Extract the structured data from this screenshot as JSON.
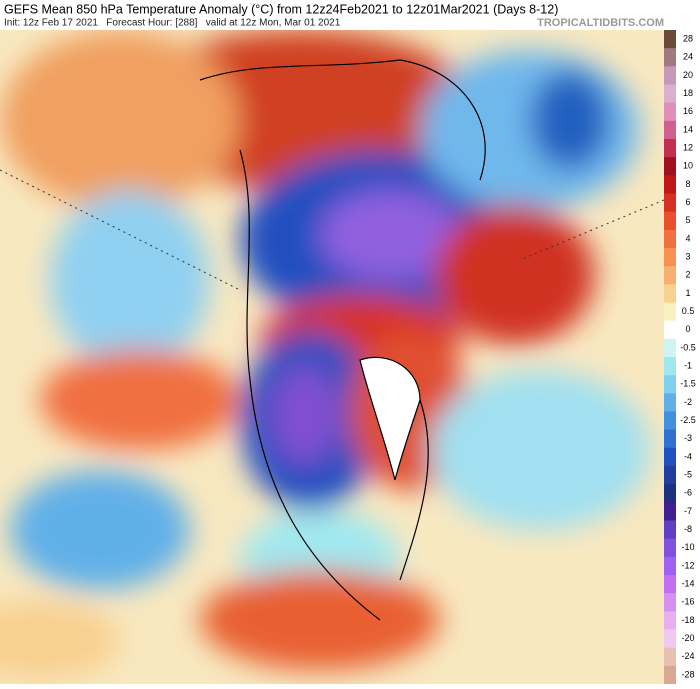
{
  "header": {
    "title": "GEFS Mean 850 hPa Temperature Anomaly (°C) from 12z24Feb2021 to 12z01Mar2021 (Days 8-12)",
    "info": "Init: 12z Feb 17 2021   Forecast Hour: [288]   valid at 12z Mon, Mar 01 2021",
    "brand": "TROPICALTIDBITS.COM"
  },
  "colorbar": {
    "labels": [
      28,
      24,
      20,
      18,
      16,
      14,
      12,
      10,
      8,
      6,
      5,
      4,
      3,
      2,
      1,
      0.5,
      0,
      -0.5,
      -1,
      -1.5,
      -2,
      -2.5,
      -3,
      -4,
      -5,
      -6,
      -7,
      -8,
      -10,
      -12,
      -14,
      -16,
      -18,
      -20,
      -24,
      -28
    ],
    "colors": [
      "#6b4a3a",
      "#a07a80",
      "#c898b8",
      "#d8b0d0",
      "#e090b8",
      "#d06090",
      "#c03050",
      "#a01020",
      "#c01818",
      "#d83020",
      "#e85030",
      "#f07040",
      "#f89050",
      "#f8b070",
      "#f8d090",
      "#f8f0c0",
      "#ffffff",
      "#d0f4f4",
      "#a0e8f0",
      "#80d0f0",
      "#60b0e8",
      "#4090e0",
      "#3070d0",
      "#2050c0",
      "#2040a0",
      "#203080",
      "#402090",
      "#6040c0",
      "#8050e0",
      "#a060f0",
      "#c070f0",
      "#d890f0",
      "#e8b0f0",
      "#f0c8f0",
      "#e8c0b0",
      "#d8a890"
    ]
  }
}
